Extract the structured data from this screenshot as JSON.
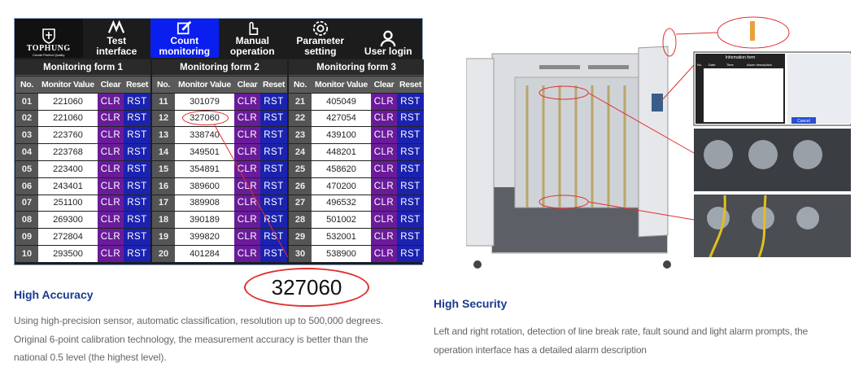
{
  "hmi": {
    "logo": {
      "brand": "TOPHUNG",
      "slogan": "Create Perfect Quality"
    },
    "nav": [
      {
        "label1": "Test",
        "label2": "interface",
        "icon": "waveform-icon",
        "active": false
      },
      {
        "label1": "Count",
        "label2": "monitoring",
        "icon": "edit-icon",
        "active": true
      },
      {
        "label1": "Manual",
        "label2": "operation",
        "icon": "hand-pointer-icon",
        "active": false
      },
      {
        "label1": "Parameter",
        "label2": "setting",
        "icon": "gear-icon",
        "active": false
      },
      {
        "label1": "",
        "label2": "User login",
        "icon": "user-icon",
        "active": false
      }
    ],
    "columns": {
      "no": "No.",
      "value": "Monitor Value",
      "clear": "Clear",
      "reset": "Reset"
    },
    "clr_label": "CLR",
    "rst_label": "RST",
    "forms": [
      {
        "title": "Monitoring form 1",
        "rows": [
          [
            "01",
            "221060"
          ],
          [
            "02",
            "221060"
          ],
          [
            "03",
            "223760"
          ],
          [
            "04",
            "223768"
          ],
          [
            "05",
            "223400"
          ],
          [
            "06",
            "243401"
          ],
          [
            "07",
            "251100"
          ],
          [
            "08",
            "269300"
          ],
          [
            "09",
            "272804"
          ],
          [
            "10",
            "293500"
          ]
        ]
      },
      {
        "title": "Monitoring form 2",
        "rows": [
          [
            "11",
            "301079"
          ],
          [
            "12",
            "327060"
          ],
          [
            "13",
            "338740"
          ],
          [
            "14",
            "349501"
          ],
          [
            "15",
            "354891"
          ],
          [
            "16",
            "389600"
          ],
          [
            "17",
            "389908"
          ],
          [
            "18",
            "390189"
          ],
          [
            "19",
            "399820"
          ],
          [
            "20",
            "401284"
          ]
        ]
      },
      {
        "title": "Monitoring form 3",
        "rows": [
          [
            "21",
            "405049"
          ],
          [
            "22",
            "427054"
          ],
          [
            "23",
            "439100"
          ],
          [
            "24",
            "448201"
          ],
          [
            "25",
            "458620"
          ],
          [
            "26",
            "470200"
          ],
          [
            "27",
            "496532"
          ],
          [
            "28",
            "501002"
          ],
          [
            "29",
            "532001"
          ],
          [
            "30",
            "538900"
          ]
        ]
      }
    ],
    "callout_value": "327060",
    "colors": {
      "active_tab": "#0a1ef0",
      "clr": "#6a1b9a",
      "rst": "#1b22b0",
      "callout": "#e03030"
    }
  },
  "machine": {
    "info_title": "Information form",
    "info_headers": [
      "No.",
      "Date",
      "Time",
      "Alarm description"
    ],
    "cancel": "Cancel"
  },
  "features": [
    {
      "title": "High Accuracy",
      "lines": [
        "Using high-precision sensor, automatic classification, resolution up to 500,000 degrees.",
        "Original 6-point calibration technology, the measurement accuracy is better than the",
        "national 0.5 level (the highest level)."
      ]
    },
    {
      "title": "High Security",
      "lines": [
        "Left and right rotation, detection of line break rate, fault sound and light alarm prompts, the",
        "operation interface has a detailed alarm description"
      ]
    }
  ]
}
